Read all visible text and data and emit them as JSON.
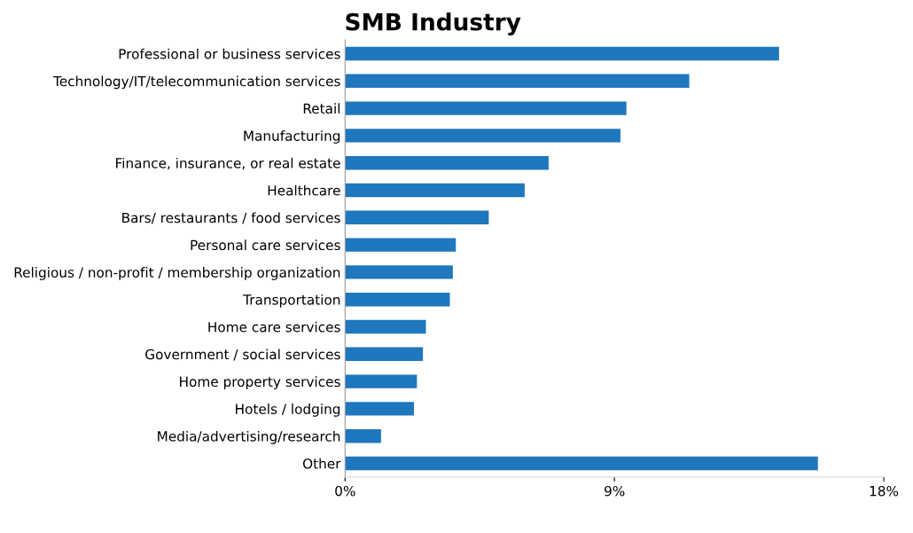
{
  "chart_data": {
    "type": "bar",
    "orientation": "horizontal",
    "title": "SMB Industry",
    "categories": [
      "Professional or business services",
      "Technology/IT/telecommunication services",
      "Retail",
      "Manufacturing",
      "Finance, insurance, or real estate",
      "Healthcare",
      "Bars/ restaurants / food services",
      "Personal care services",
      "Religious / non-profit / membership organization",
      "Transportation",
      "Home care services",
      "Government / social services",
      "Home property services",
      "Hotels / lodging",
      "Media/advertising/research",
      "Other"
    ],
    "values": [
      14.5,
      11.5,
      9.4,
      9.2,
      6.8,
      6.0,
      4.8,
      3.7,
      3.6,
      3.5,
      2.7,
      2.6,
      2.4,
      2.3,
      1.2,
      15.8
    ],
    "color": "#1f77be",
    "xlim": [
      0,
      18
    ],
    "xticks": [
      {
        "value": 0,
        "label": "0%"
      },
      {
        "value": 9,
        "label": "9%"
      },
      {
        "value": 18,
        "label": "18%"
      }
    ],
    "grid": false,
    "legend": false
  }
}
